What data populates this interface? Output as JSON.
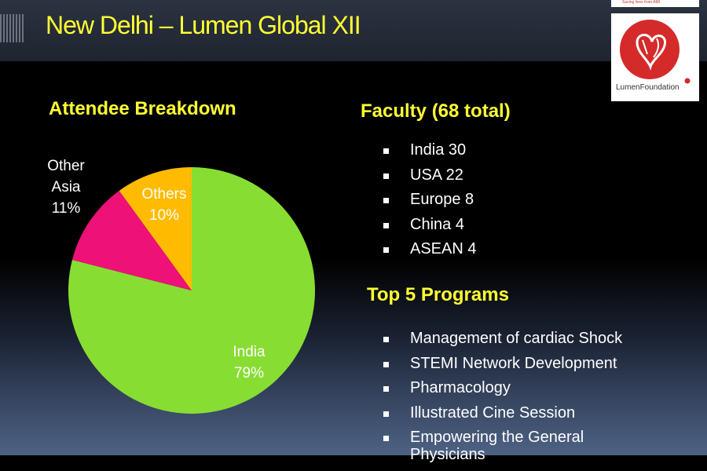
{
  "slide": {
    "title": "New Delhi – Lumen Global XII"
  },
  "logo": {
    "tagline": "Saving lives from AMI",
    "name": "LumenFoundation"
  },
  "attendee_section": {
    "title": "Attendee Breakdown"
  },
  "faculty_section": {
    "title": "Faculty (68 total)",
    "items": [
      "India 30",
      "USA 22",
      "Europe 8",
      "China 4",
      "ASEAN 4"
    ]
  },
  "programs_section": {
    "title": "Top 5 Programs",
    "items": [
      "Management of cardiac Shock",
      "STEMI Network Development",
      "Pharmacology",
      "Illustrated Cine Session",
      "Empowering the General",
      "Physicians"
    ]
  },
  "chart_data": {
    "type": "pie",
    "title": "Attendee Breakdown",
    "slices": [
      {
        "label": "India",
        "value": 79,
        "display": "79%",
        "color": "#88dd33"
      },
      {
        "label": "Other Asia",
        "value": 11,
        "display": "11%",
        "color": "#ee1177"
      },
      {
        "label": "Others",
        "value": 10,
        "display": "10%",
        "color": "#ffbb00"
      }
    ]
  },
  "colors": {
    "title_yellow": "#ffff33",
    "background": "#000000"
  }
}
